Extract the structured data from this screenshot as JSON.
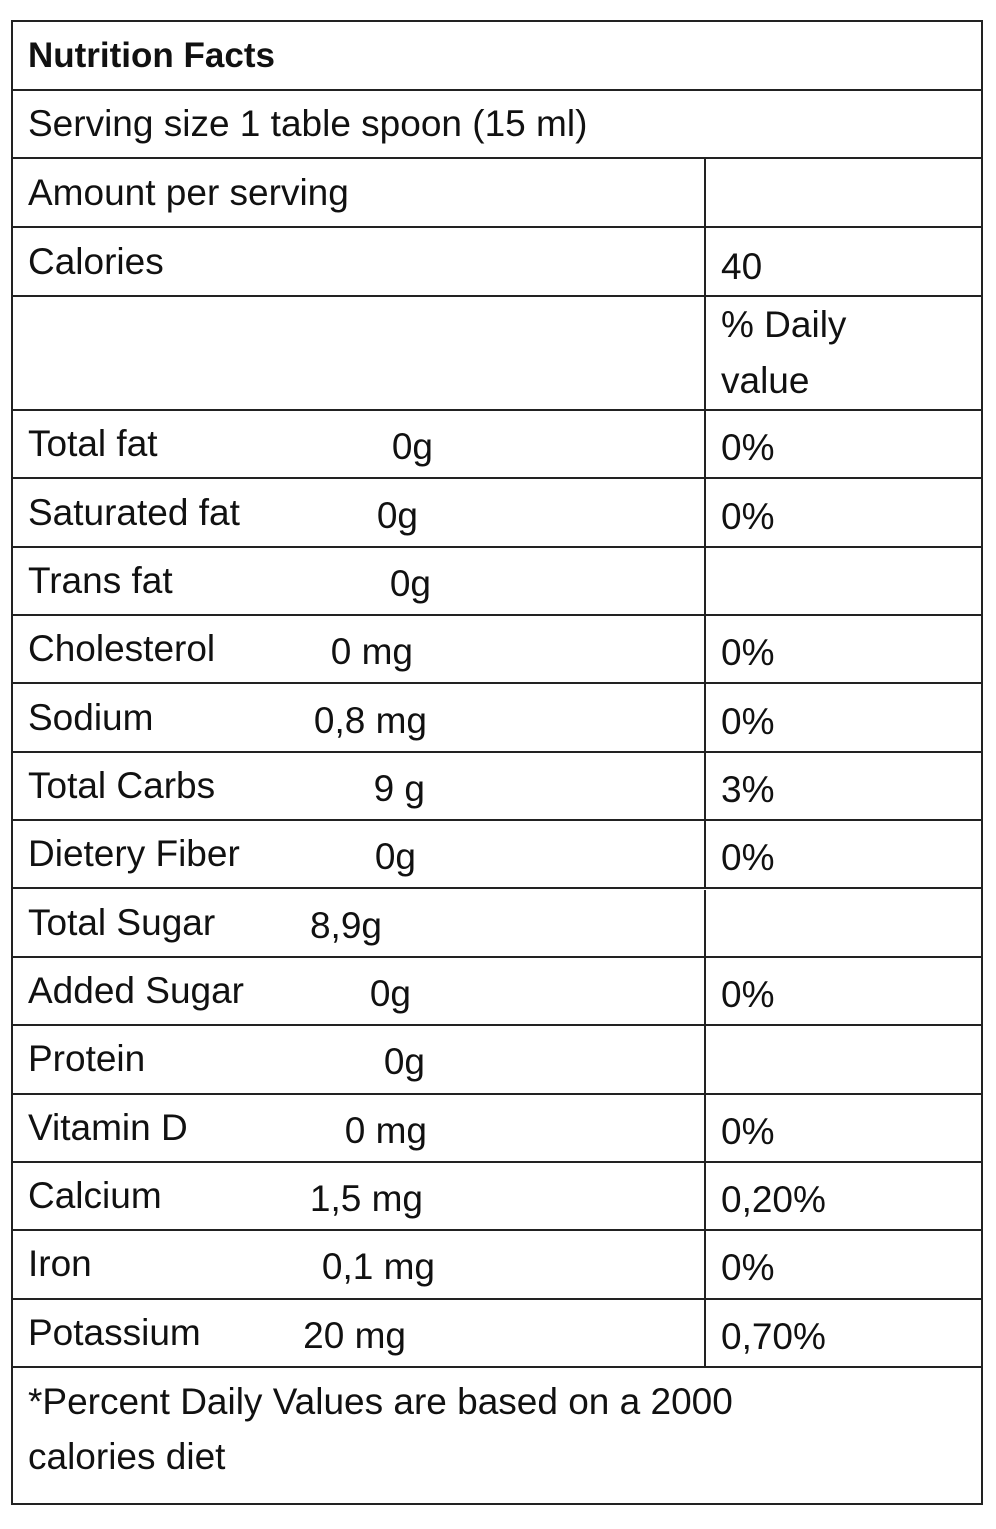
{
  "header": {
    "title": "Nutrition Facts",
    "serving_size": "Serving size 1 table spoon (15 ml)"
  },
  "table": {
    "amount_label": "Amount per serving",
    "calories_label": "Calories",
    "calories": 40,
    "daily_value_label": "% Daily value",
    "rows": [
      {
        "name": "Total fat",
        "amount": "0g",
        "daily": "0%"
      },
      {
        "name": "Saturated fat",
        "amount": "0g",
        "daily": "0%"
      },
      {
        "name": "Trans fat",
        "amount": "0g"
      },
      {
        "name": "Cholesterol",
        "amount": "0 mg",
        "daily": "0%"
      },
      {
        "name": "Sodium",
        "amount": "0,8 mg",
        "daily": "0%"
      },
      {
        "name": "Total Carbs",
        "amount": "9 g",
        "daily": "3%"
      },
      {
        "name": "Dietery Fiber",
        "amount": "0g",
        "daily": "0%"
      },
      {
        "name": "Total Sugar",
        "amount": "8,9g"
      },
      {
        "name": "Added Sugar",
        "amount": "0g",
        "daily": "0%"
      },
      {
        "name": "Protein",
        "amount": "0g"
      },
      {
        "name": "Vitamin D",
        "amount": "0 mg",
        "daily": "0%"
      },
      {
        "name": "Calcium",
        "amount": "1,5 mg",
        "daily": "0,20%"
      },
      {
        "name": "Iron",
        "amount": "0,1 mg",
        "daily": "0%"
      },
      {
        "name": "Potassium",
        "amount": "20 mg",
        "daily": "0,70%"
      }
    ]
  },
  "footer": "*Percent Daily Values are based on a 2000 calories diet"
}
